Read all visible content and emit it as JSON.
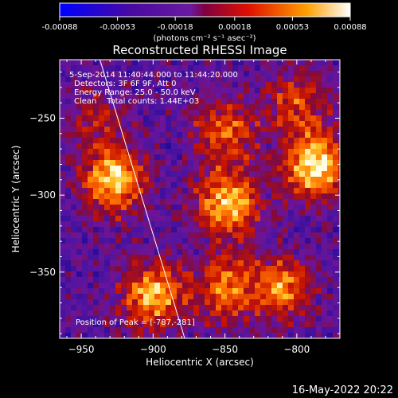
{
  "chart_data": {
    "type": "heatmap",
    "title": "Reconstructed RHESSI Image",
    "xlabel": "Heliocentric X (arcsec)",
    "ylabel": "Heliocentric Y (arcsec)",
    "xlim": [
      -965,
      -770
    ],
    "ylim": [
      -393,
      -212
    ],
    "xticks": [
      -950,
      -900,
      -850,
      -800
    ],
    "yticks": [
      -350,
      -300,
      -250
    ],
    "colorbar": {
      "ticks": [
        -0.00088,
        -0.00053,
        -0.00018,
        0.00018,
        0.00053,
        0.00088
      ],
      "tick_labels": [
        "-0.00088",
        "-0.00053",
        "-0.00018",
        "0.00018",
        "0.00053",
        "0.00088"
      ],
      "label": "(photons cm⁻² s⁻¹ asec⁻²)",
      "range": [
        -0.00088,
        0.00088
      ]
    },
    "annotations": {
      "time_range": "5-Sep-2014 11:40:44.000 to 11:44:20.000",
      "detectors": "Detectors: 3F 6F 9F, Att 0",
      "energy_range": "Energy Range: 25.0 - 50.0 keV",
      "clean": "Clean    Total counts: 1.44E+03",
      "peak": "Position of Peak = [-787,-281]"
    },
    "peak_position": [
      -787,
      -281
    ],
    "limb_line": [
      [
        -937,
        -212
      ],
      [
        -878,
        -393
      ]
    ],
    "sources": [
      {
        "x": -927,
        "y": -290,
        "intensity": 0.8
      },
      {
        "x": -848,
        "y": -305,
        "intensity": 0.78
      },
      {
        "x": -787,
        "y": -281,
        "intensity": 0.88
      },
      {
        "x": -900,
        "y": -365,
        "intensity": 0.72
      },
      {
        "x": -850,
        "y": -258,
        "intensity": 0.5
      },
      {
        "x": -810,
        "y": -360,
        "intensity": 0.6
      },
      {
        "x": -850,
        "y": -360,
        "intensity": 0.55
      },
      {
        "x": -940,
        "y": -250,
        "intensity": 0.3
      },
      {
        "x": -800,
        "y": -240,
        "intensity": 0.45
      }
    ]
  },
  "footer": {
    "date": "16-May-2022 20:22"
  }
}
